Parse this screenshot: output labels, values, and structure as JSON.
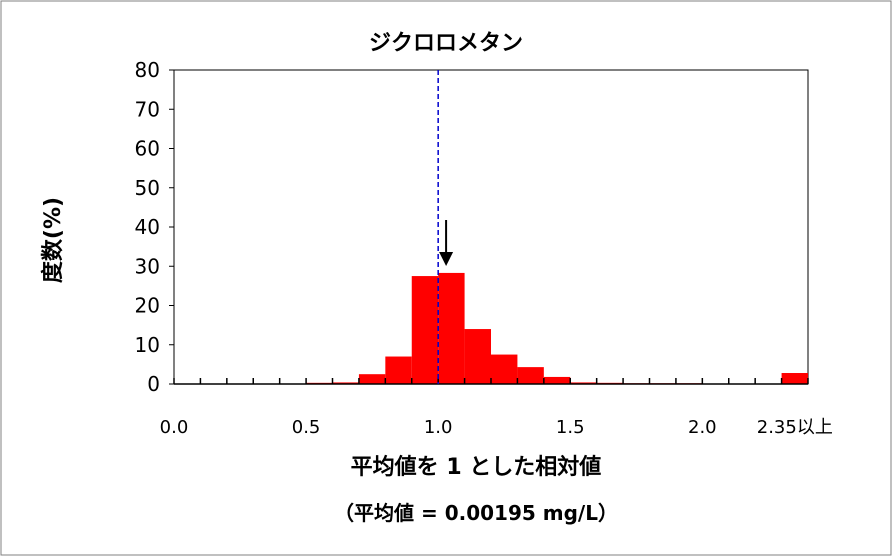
{
  "chart_data": {
    "type": "bar",
    "title": "ジクロロメタン",
    "ylabel": "度数(%)",
    "xlabel": "平均値を 1 とした相対値",
    "xlabel_sub": "（平均値 =  0.00195 mg/L）",
    "ylim": [
      0,
      80
    ],
    "xlim": [
      0,
      2.4
    ],
    "bin_width": 0.1,
    "y_ticks": [
      "0",
      "10",
      "20",
      "30",
      "40",
      "50",
      "60",
      "70",
      "80"
    ],
    "x_ticks": [
      {
        "value": 0.0,
        "label": "0.0"
      },
      {
        "value": 0.5,
        "label": "0.5"
      },
      {
        "value": 1.0,
        "label": "1.0"
      },
      {
        "value": 1.5,
        "label": "1.5"
      },
      {
        "value": 2.0,
        "label": "2.0"
      },
      {
        "value": 2.35,
        "label": "2.35以上"
      }
    ],
    "bins": [
      {
        "x0": 0.5,
        "value": 0.3
      },
      {
        "x0": 0.6,
        "value": 0.4
      },
      {
        "x0": 0.7,
        "value": 2.5
      },
      {
        "x0": 0.8,
        "value": 7.0
      },
      {
        "x0": 0.9,
        "value": 27.5
      },
      {
        "x0": 1.0,
        "value": 28.3
      },
      {
        "x0": 1.1,
        "value": 14.0
      },
      {
        "x0": 1.2,
        "value": 7.5
      },
      {
        "x0": 1.3,
        "value": 4.3
      },
      {
        "x0": 1.4,
        "value": 1.8
      },
      {
        "x0": 1.5,
        "value": 0.4
      },
      {
        "x0": 1.6,
        "value": 0.3
      },
      {
        "x0": 1.7,
        "value": 0.2
      },
      {
        "x0": 1.8,
        "value": 0.2
      },
      {
        "x0": 1.9,
        "value": 0.2
      },
      {
        "x0": 2.0,
        "value": 0.1
      },
      {
        "x0": 2.1,
        "value": 0.1
      },
      {
        "x0": 2.2,
        "value": 0.1
      },
      {
        "x0": 2.3,
        "value": 2.8
      }
    ],
    "mean_line_x": 1.0,
    "median_arrow_x": 1.03,
    "colors": {
      "bar": "#ff0000",
      "mean_line": "#0000cc",
      "axis": "#000000",
      "frame": "#808080"
    },
    "grid": false,
    "legend": "none"
  }
}
